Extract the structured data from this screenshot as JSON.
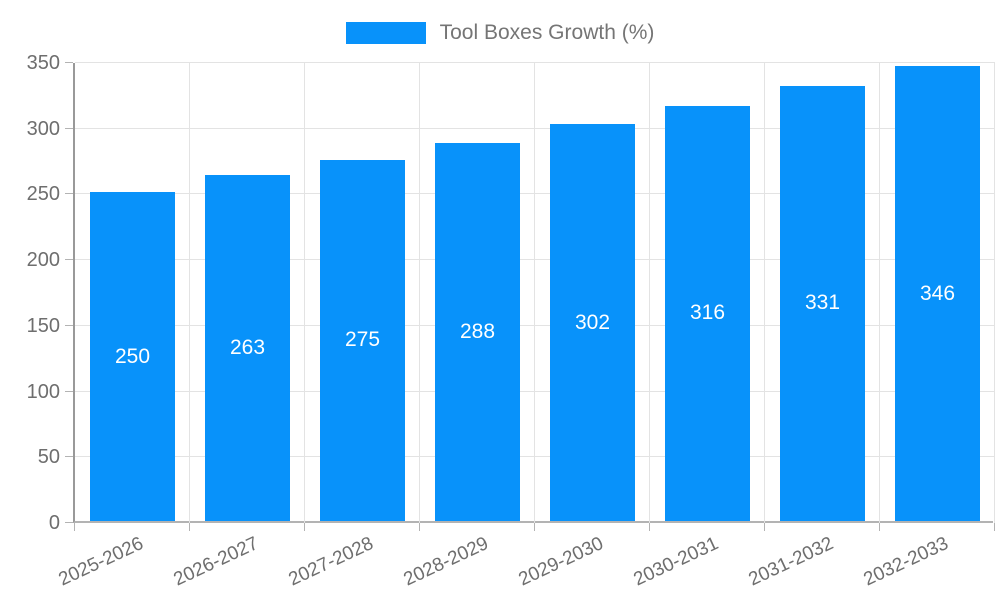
{
  "chart_data": {
    "type": "bar",
    "title": "",
    "legend": {
      "label": "Tool Boxes Growth (%)",
      "position": "top"
    },
    "categories": [
      "2025-2026",
      "2026-2027",
      "2027-2028",
      "2028-2029",
      "2029-2030",
      "2030-2031",
      "2031-2032",
      "2032-2033"
    ],
    "values": [
      250,
      263,
      275,
      288,
      302,
      316,
      331,
      346
    ],
    "xlabel": "",
    "ylabel": "",
    "ylim": [
      0,
      350
    ],
    "ytick_step": 50,
    "yticks": [
      0,
      50,
      100,
      150,
      200,
      250,
      300,
      350
    ],
    "grid": true,
    "x_label_rotation_deg": -25,
    "colors": {
      "bar": "#0892fa",
      "bar_value_text": "#ffffff",
      "axis_text": "#6e6e6e",
      "legend_text": "#757575",
      "gridline": "#e3e3e3",
      "axis_line": "#999999"
    }
  }
}
